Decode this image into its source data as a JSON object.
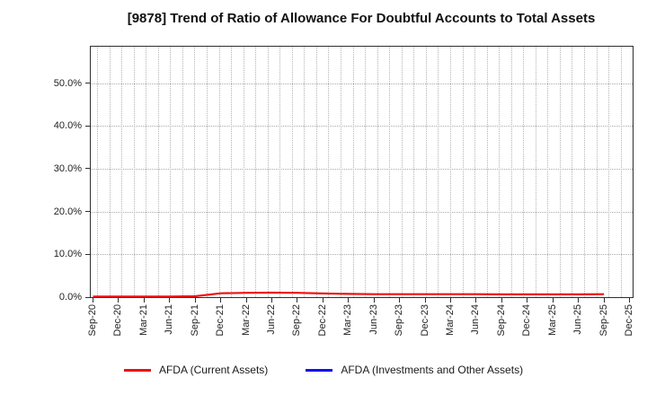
{
  "title": "[9878]  Trend of Ratio of Allowance For Doubtful Accounts to Total Assets",
  "chart_data": {
    "type": "line",
    "title": "[9878]  Trend of Ratio of Allowance For Doubtful Accounts to Total Assets",
    "categories": [
      "Sep-20",
      "Dec-20",
      "Mar-21",
      "Jun-21",
      "Sep-21",
      "Dec-21",
      "Mar-22",
      "Jun-22",
      "Sep-22",
      "Dec-22",
      "Mar-23",
      "Jun-23",
      "Sep-23",
      "Dec-23",
      "Mar-24",
      "Jun-24",
      "Sep-24",
      "Dec-24",
      "Mar-25",
      "Jun-25",
      "Sep-25",
      "Dec-25"
    ],
    "series": [
      {
        "name": "AFDA (Current Assets)",
        "color": "#ee1111",
        "unit": "%",
        "values": [
          0.15,
          0.15,
          0.15,
          0.12,
          0.2,
          0.9,
          1.0,
          1.05,
          1.0,
          0.85,
          0.75,
          0.7,
          0.7,
          0.7,
          0.7,
          0.7,
          0.65,
          0.65,
          0.65,
          0.65,
          0.7
        ]
      },
      {
        "name": "AFDA (Investments and Other Assets)",
        "color": "#1111ee",
        "unit": "%",
        "values": [],
        "note": "legend entry shown but no visible data line"
      }
    ],
    "xlabel": "",
    "ylabel": "",
    "ytick_labels": [
      "0.0%",
      "10.0%",
      "20.0%",
      "30.0%",
      "40.0%",
      "50.0%"
    ],
    "ylim": [
      0,
      58.5
    ],
    "grid": true,
    "grid_style": "dotted",
    "legend_position": "bottom"
  }
}
